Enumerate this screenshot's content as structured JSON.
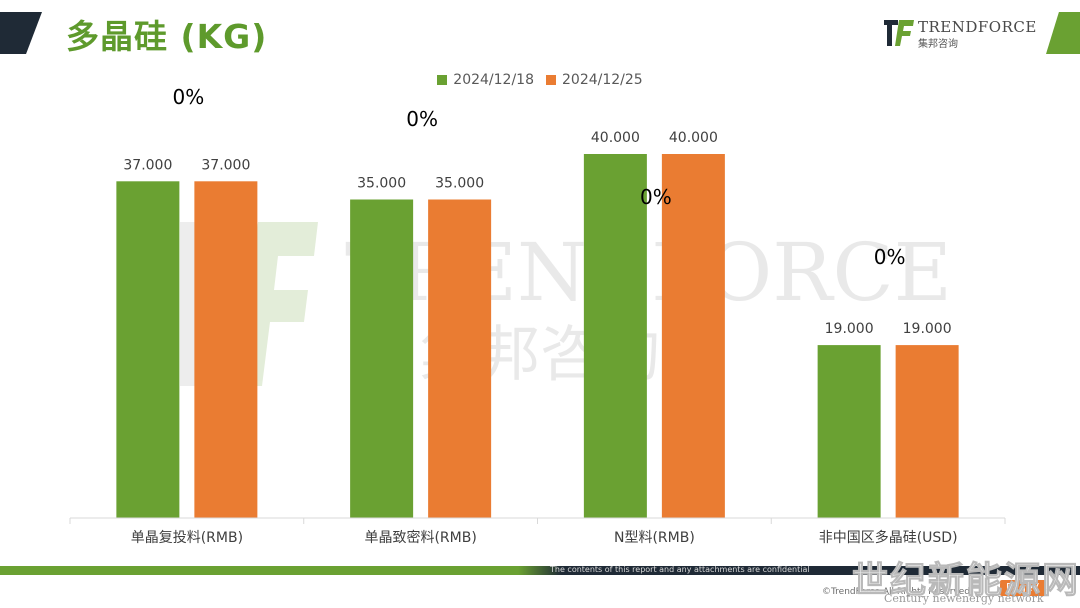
{
  "header": {
    "title": "多晶硅 (KG)",
    "brand_name": "TRENDFORCE",
    "brand_sub": "集邦咨询"
  },
  "colors": {
    "series_a": "#6aa132",
    "series_b": "#ea7c32",
    "title": "#5e9a2c",
    "dark": "#1f2a36"
  },
  "chart_data": {
    "type": "bar",
    "categories": [
      "单晶复投料(RMB)",
      "单晶致密料(RMB)",
      "N型料(RMB)",
      "非中国区多晶硅(USD)"
    ],
    "series": [
      {
        "name": "2024/12/18",
        "values": [
          37.0,
          35.0,
          40.0,
          19.0
        ],
        "labels": [
          "37.000",
          "35.000",
          "40.000",
          "19.000"
        ]
      },
      {
        "name": "2024/12/25",
        "values": [
          37.0,
          35.0,
          40.0,
          19.0
        ],
        "labels": [
          "37.000",
          "35.000",
          "40.000",
          "19.000"
        ]
      }
    ],
    "change_labels": [
      "0%",
      "0%",
      "0%",
      "0%"
    ],
    "ylim": [
      0,
      40.0
    ],
    "grid": false,
    "legend_position": "top-center",
    "xlabel": "",
    "ylabel": ""
  },
  "footer": {
    "note": "The contents of this report and any attachments are confidential",
    "copyright": "©TrendForce All Rights Reserved",
    "page_label": "Page7"
  },
  "watermark": {
    "text": "世纪新能源网",
    "sub": "Century newenergy network"
  }
}
